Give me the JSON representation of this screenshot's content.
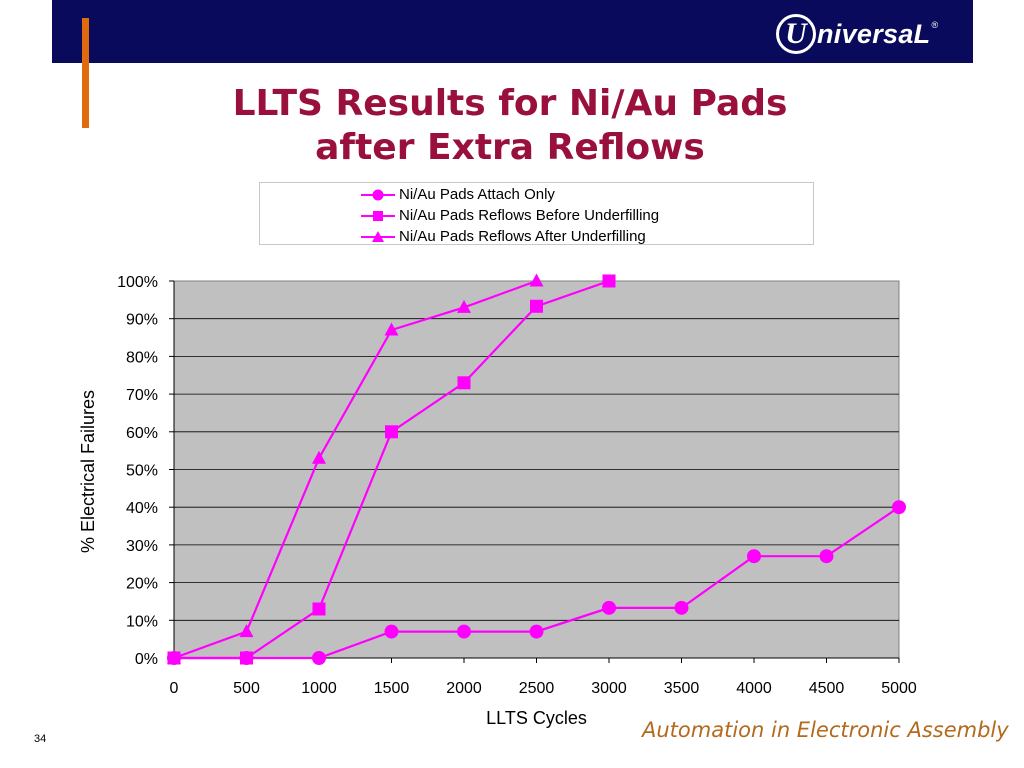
{
  "header": {
    "logo_letter": "U",
    "logo_text": "niversaL",
    "logo_reg": "®"
  },
  "slide": {
    "title_line1": "LLTS Results for Ni/Au Pads",
    "title_line2": "after Extra Reflows",
    "page_number": "34",
    "tagline": "Automation in Electronic Assembly"
  },
  "colors": {
    "header": "#0a0a5c",
    "accent_bar": "#e06a10",
    "title": "#99103c",
    "series": "#ff00ff",
    "plot_bg": "#c0c0c0",
    "tagline": "#b36a1e"
  },
  "chart_data": {
    "type": "line",
    "xlabel": "LLTS Cycles",
    "ylabel": "% Electrical Failures",
    "xlim": [
      0,
      5000
    ],
    "ylim": [
      0,
      100
    ],
    "x_ticks": [
      "0",
      "500",
      "1000",
      "1500",
      "2000",
      "2500",
      "3000",
      "3500",
      "4000",
      "4500",
      "5000"
    ],
    "y_ticks": [
      "0%",
      "10%",
      "20%",
      "30%",
      "40%",
      "50%",
      "60%",
      "70%",
      "80%",
      "90%",
      "100%"
    ],
    "grid": "horizontal",
    "legend_position": "top",
    "series": [
      {
        "name": "Ni/Au Pads Attach Only",
        "marker": "circle",
        "x": [
          0,
          500,
          1000,
          1500,
          2000,
          2500,
          3000,
          3500,
          4000,
          4500,
          5000
        ],
        "y": [
          0,
          0,
          0,
          7,
          7,
          7,
          13.3,
          13.3,
          27,
          27,
          40
        ]
      },
      {
        "name": "Ni/Au Pads Reflows Before Underfilling",
        "marker": "square",
        "x": [
          0,
          500,
          1000,
          1500,
          2000,
          2500,
          3000
        ],
        "y": [
          0,
          0,
          13,
          60,
          73,
          93.3,
          100
        ]
      },
      {
        "name": "Ni/Au Pads Reflows After Underfilling",
        "marker": "triangle",
        "x": [
          0,
          500,
          1000,
          1500,
          2000,
          2500
        ],
        "y": [
          0,
          7,
          53,
          87,
          93,
          100
        ]
      }
    ]
  }
}
